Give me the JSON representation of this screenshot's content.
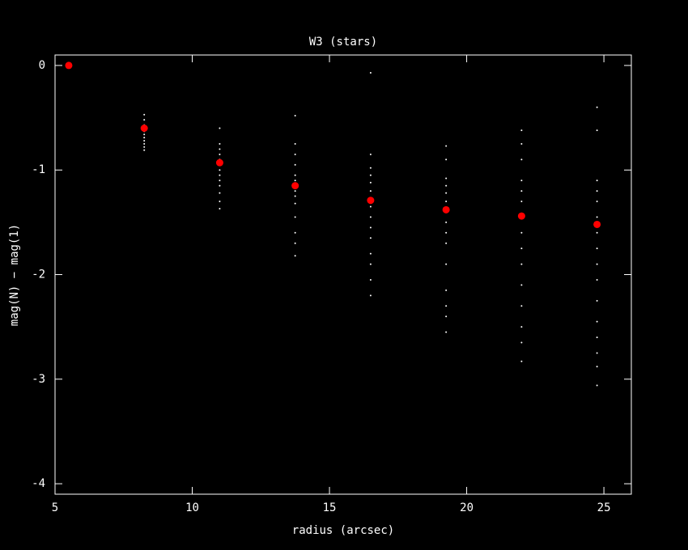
{
  "chart_data": {
    "type": "scatter",
    "title": "W3 (stars)",
    "x_label": "radius (arcsec)",
    "y_label": "mag(N) − mag(1)",
    "xlim": [
      5,
      26
    ],
    "ylim": [
      -4.1,
      0.1
    ],
    "xticks": [
      5,
      10,
      15,
      20,
      25
    ],
    "yticks": [
      0,
      -1,
      -2,
      -3,
      -4
    ],
    "series": [
      {
        "color": "#ffffff",
        "marker_size": 1,
        "x": [
          8.25,
          8.25,
          8.25,
          8.25,
          8.25,
          8.25,
          8.25,
          8.25,
          8.25,
          8.25,
          8.25,
          11,
          11,
          11,
          11,
          11,
          11,
          11,
          11,
          11,
          11,
          11,
          11,
          11,
          13.75,
          13.75,
          13.75,
          13.75,
          13.75,
          13.75,
          13.75,
          13.75,
          13.75,
          13.75,
          13.75,
          13.75,
          13.75,
          13.75,
          16.5,
          16.5,
          16.5,
          16.5,
          16.5,
          16.5,
          16.5,
          16.5,
          16.5,
          16.5,
          16.5,
          16.5,
          16.5,
          16.5,
          16.5,
          19.25,
          19.25,
          19.25,
          19.25,
          19.25,
          19.25,
          19.25,
          19.25,
          19.25,
          19.25,
          19.25,
          19.25,
          19.25,
          19.25,
          19.25,
          22,
          22,
          22,
          22,
          22,
          22,
          22,
          22,
          22,
          22,
          22,
          22,
          22,
          22,
          22,
          24.75,
          24.75,
          24.75,
          24.75,
          24.75,
          24.75,
          24.75,
          24.75,
          24.75,
          24.75,
          24.75,
          24.75,
          24.75,
          24.75,
          24.75,
          24.75
        ],
        "values": [
          -0.47,
          -0.52,
          -0.57,
          -0.6,
          -0.63,
          -0.66,
          -0.69,
          -0.72,
          -0.75,
          -0.78,
          -0.81,
          -0.6,
          -0.75,
          -0.8,
          -0.85,
          -0.9,
          -0.95,
          -1.0,
          -1.05,
          -1.1,
          -1.15,
          -1.22,
          -1.3,
          -1.37,
          -0.48,
          -0.75,
          -0.85,
          -0.95,
          -1.05,
          -1.1,
          -1.15,
          -1.2,
          -1.25,
          -1.32,
          -1.45,
          -1.6,
          -1.7,
          -1.82,
          -0.07,
          -0.85,
          -0.98,
          -1.05,
          -1.12,
          -1.2,
          -1.27,
          -1.35,
          -1.45,
          -1.55,
          -1.65,
          -1.8,
          -1.9,
          -2.05,
          -2.2,
          -0.77,
          -0.9,
          -1.08,
          -1.15,
          -1.22,
          -1.3,
          -1.4,
          -1.5,
          -1.6,
          -1.7,
          -1.9,
          -2.15,
          -2.3,
          -2.4,
          -2.55,
          -0.62,
          -0.75,
          -0.9,
          -1.1,
          -1.2,
          -1.3,
          -1.45,
          -1.6,
          -1.75,
          -1.9,
          -2.1,
          -2.3,
          -2.5,
          -2.65,
          -2.83,
          -0.4,
          -0.62,
          -1.1,
          -1.2,
          -1.3,
          -1.45,
          -1.6,
          -1.75,
          -1.9,
          -2.05,
          -2.25,
          -2.45,
          -2.6,
          -2.75,
          -2.88,
          -3.06
        ]
      },
      {
        "color": "#ff0000",
        "marker_size": 4.5,
        "x": [
          5.5,
          8.25,
          11,
          13.75,
          16.5,
          19.25,
          22,
          24.75
        ],
        "values": [
          0,
          -0.6,
          -0.93,
          -1.15,
          -1.29,
          -1.38,
          -1.44,
          -1.52
        ]
      }
    ]
  }
}
